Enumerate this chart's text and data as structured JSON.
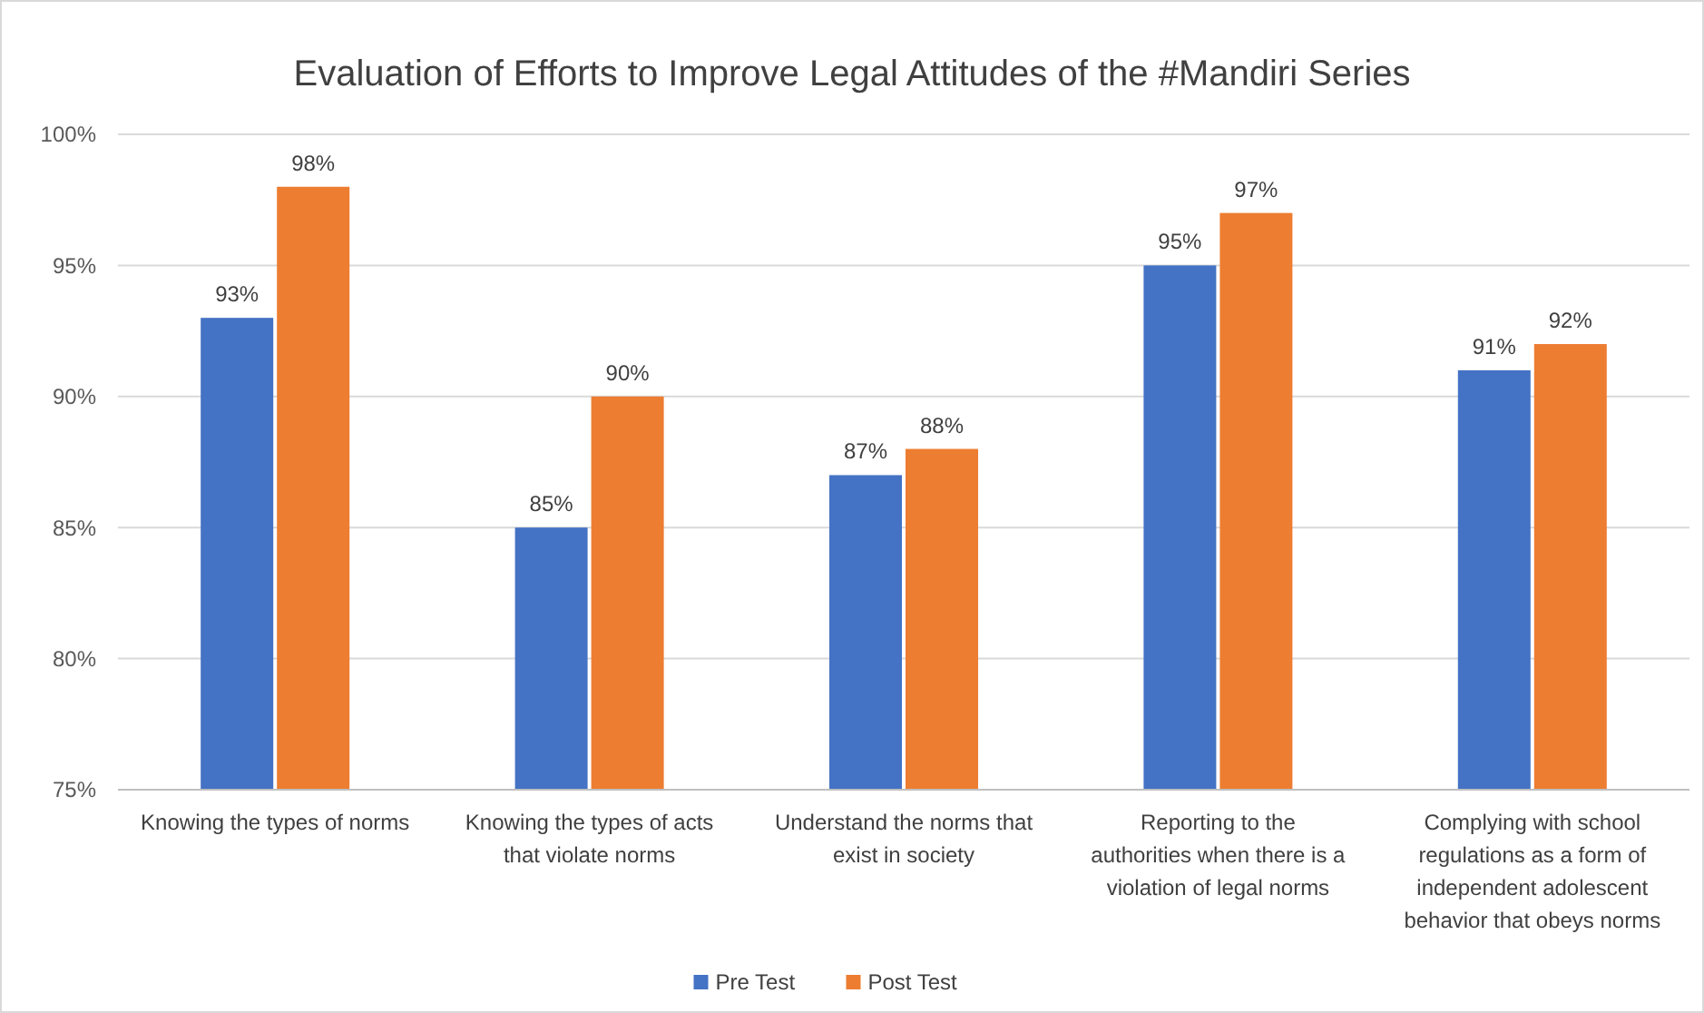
{
  "chart_data": {
    "type": "bar",
    "title": "Evaluation of Efforts to Improve Legal Attitudes of the #Mandiri Series",
    "categories": [
      "Knowing the types of norms",
      "Knowing the types of acts that violate norms",
      "Understand the norms that exist in society",
      "Reporting to the authorities when there is a violation of legal norms",
      "Complying with school regulations as a form of independent adolescent behavior that obeys norms"
    ],
    "series": [
      {
        "name": "Pre Test",
        "color": "#4472c4",
        "values": [
          93,
          85,
          87,
          95,
          91
        ],
        "value_labels": [
          "93%",
          "85%",
          "87%",
          "95%",
          "91%"
        ]
      },
      {
        "name": "Post Test",
        "color": "#ed7d31",
        "values": [
          98,
          90,
          88,
          97,
          92
        ],
        "value_labels": [
          "98%",
          "90%",
          "88%",
          "97%",
          "92%"
        ]
      }
    ],
    "ylim": [
      75,
      100
    ],
    "yticks": [
      {
        "value": 75,
        "label": "75%"
      },
      {
        "value": 80,
        "label": "80%"
      },
      {
        "value": 85,
        "label": "85%"
      },
      {
        "value": 90,
        "label": "90%"
      },
      {
        "value": 95,
        "label": "95%"
      },
      {
        "value": 100,
        "label": "100%"
      }
    ],
    "grid": "y",
    "legend": "bottom"
  }
}
